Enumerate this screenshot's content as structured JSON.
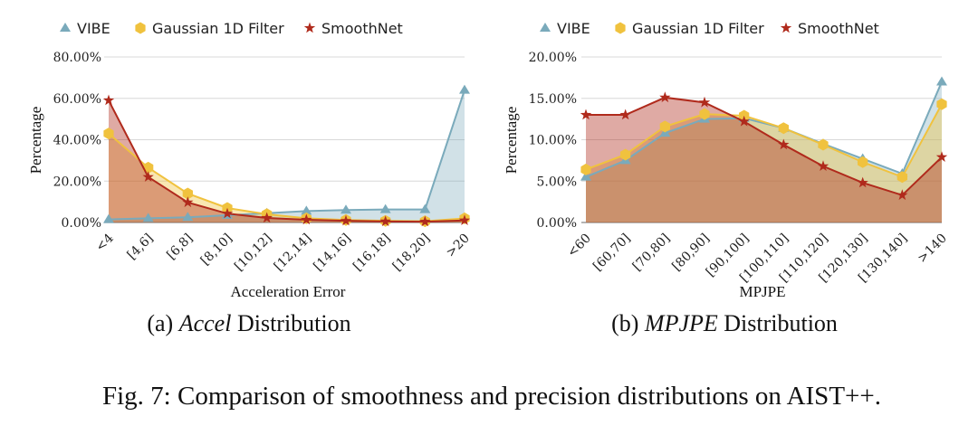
{
  "colors": {
    "vibe": "#7aaabb",
    "gaussian": "#f0c23e",
    "smoothnet": "#b02a1c"
  },
  "legend": [
    "VIBE",
    "Gaussian 1D Filter",
    "SmoothNet"
  ],
  "chart_data": [
    {
      "type": "area",
      "title": "",
      "subcaption_prefix": "(a) ",
      "subcaption_italic": "Accel",
      "subcaption_suffix": " Distribution",
      "xlabel": "Acceleration Error",
      "ylabel": "Percentage",
      "ylim": [
        0,
        80
      ],
      "yticks": [
        "0.00%",
        "20.00%",
        "40.00%",
        "60.00%",
        "80.00%"
      ],
      "categories": [
        "<4",
        "[4,6]",
        "[6,8]",
        "[8,10]",
        "[10,12]",
        "[12,14]",
        "[14,16]",
        "[16,18]",
        "[18,20]",
        ">20"
      ],
      "series": [
        {
          "name": "VIBE",
          "values": [
            1.5,
            2,
            2.5,
            3.5,
            4.5,
            5.5,
            6,
            6.3,
            6.3,
            64
          ]
        },
        {
          "name": "Gaussian 1D Filter",
          "values": [
            43,
            26.5,
            14,
            7,
            4,
            2,
            1.2,
            0.8,
            0.6,
            2
          ]
        },
        {
          "name": "SmoothNet",
          "values": [
            59,
            22,
            9.7,
            4.3,
            2.2,
            1.3,
            0.8,
            0.5,
            0.4,
            1
          ]
        }
      ],
      "grid": true,
      "legend_position": "top"
    },
    {
      "type": "area",
      "title": "",
      "subcaption_prefix": "(b) ",
      "subcaption_italic": "MPJPE",
      "subcaption_suffix": " Distribution",
      "xlabel": "MPJPE",
      "ylabel": "Percentage",
      "ylim": [
        0,
        20
      ],
      "yticks": [
        "0.00%",
        "5.00%",
        "10.00%",
        "15.00%",
        "20.00%"
      ],
      "categories": [
        "<60",
        "[60,70]",
        "[70,80]",
        "[80,90]",
        "[90,100]",
        "[100,110]",
        "[110,120]",
        "[120,130]",
        "[130,140]",
        ">140"
      ],
      "series": [
        {
          "name": "VIBE",
          "values": [
            5.5,
            7.5,
            10.8,
            12.5,
            12.6,
            11.4,
            9.5,
            7.7,
            5.9,
            17
          ]
        },
        {
          "name": "Gaussian 1D Filter",
          "values": [
            6.4,
            8.2,
            11.6,
            13.1,
            12.9,
            11.4,
            9.4,
            7.3,
            5.5,
            14.3
          ]
        },
        {
          "name": "SmoothNet",
          "values": [
            13,
            13,
            15.1,
            14.5,
            12.2,
            9.4,
            6.8,
            4.8,
            3.3,
            7.9
          ]
        }
      ],
      "grid": true,
      "legend_position": "top"
    }
  ],
  "figure_caption": "Fig. 7: Comparison of smoothness and precision distributions on AIST++."
}
